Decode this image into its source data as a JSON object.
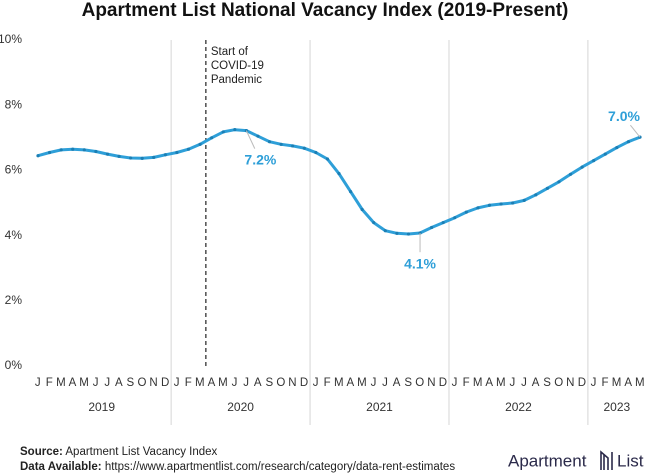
{
  "chart_data": {
    "type": "line",
    "title": "Apartment List National Vacancy Index (2019-Present)",
    "categories": [
      "J",
      "F",
      "M",
      "A",
      "M",
      "J",
      "J",
      "A",
      "S",
      "O",
      "N",
      "D",
      "J",
      "F",
      "M",
      "A",
      "M",
      "J",
      "J",
      "A",
      "S",
      "O",
      "N",
      "D",
      "J",
      "F",
      "M",
      "A",
      "M",
      "J",
      "J",
      "A",
      "S",
      "O",
      "N",
      "D",
      "J",
      "F",
      "M",
      "A",
      "M",
      "J",
      "J",
      "A",
      "S",
      "O",
      "N",
      "D",
      "J",
      "F",
      "M",
      "A",
      "M"
    ],
    "years": [
      "2019",
      "2020",
      "2021",
      "2022",
      "2023"
    ],
    "values": [
      6.45,
      6.55,
      6.63,
      6.65,
      6.63,
      6.58,
      6.5,
      6.43,
      6.38,
      6.37,
      6.4,
      6.48,
      6.55,
      6.65,
      6.8,
      7.0,
      7.18,
      7.25,
      7.22,
      7.05,
      6.88,
      6.8,
      6.75,
      6.68,
      6.55,
      6.35,
      5.9,
      5.35,
      4.8,
      4.4,
      4.15,
      4.07,
      4.05,
      4.08,
      4.25,
      4.4,
      4.55,
      4.72,
      4.85,
      4.93,
      4.97,
      5.0,
      5.08,
      5.25,
      5.45,
      5.65,
      5.88,
      6.1,
      6.3,
      6.5,
      6.7,
      6.88,
      7.02
    ],
    "value_labels": [
      null,
      null,
      null,
      null,
      null,
      null,
      null,
      null,
      null,
      null,
      null,
      null,
      null,
      null,
      null,
      null,
      null,
      null,
      "7.2%",
      null,
      null,
      null,
      null,
      null,
      null,
      null,
      null,
      null,
      null,
      null,
      null,
      null,
      null,
      "4.1%",
      null,
      null,
      null,
      null,
      null,
      null,
      null,
      null,
      null,
      null,
      null,
      null,
      null,
      null,
      null,
      null,
      null,
      null,
      "7.0%"
    ],
    "color": "#2e9fd8",
    "ylim": [
      0,
      10
    ],
    "yticks": [
      {
        "value": 0,
        "label": "0%"
      },
      {
        "value": 2,
        "label": "2%"
      },
      {
        "value": 4,
        "label": "4%"
      },
      {
        "value": 6,
        "label": "6%"
      },
      {
        "value": 8,
        "label": "8%"
      },
      {
        "value": 10,
        "label": "10%"
      }
    ],
    "annotation": [
      "Start of",
      "COVID-19",
      "Pandemic"
    ],
    "source_label": "Source:",
    "source": "Apartment List Vacancy Index",
    "data_label": "Data Available:",
    "data_url": "https://www.apartmentlist.com/research/category/data-rent-estimates",
    "logo_left": "Apartment",
    "logo_right": "List"
  }
}
